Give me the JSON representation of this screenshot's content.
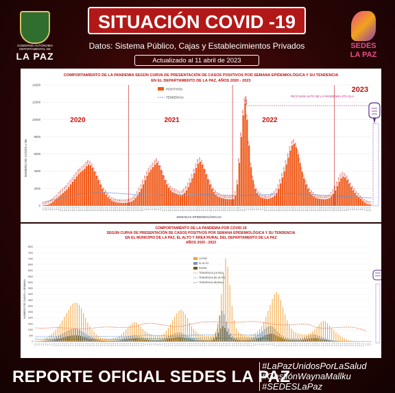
{
  "header": {
    "title": "SITUACIÓN COVID -19",
    "subtitle": "Datos: Sistema Público, Cajas y Establecimientos Privados",
    "updated": "Actualizado  al  11  abril  de  2023",
    "logo_left": {
      "line1": "GOBIERNO AUTÓNOMO",
      "line2": "DEPARTAMENTAL DE",
      "name": "LA PAZ"
    },
    "logo_right": {
      "line1": "SEDES",
      "line2": "LA PAZ"
    }
  },
  "chart_data": [
    {
      "type": "bar",
      "title": "COMPORTAMIENTO DE LA PANDEMIA SEGÚN CURVA DE PRESENTACIÓN DE CASOS POSITIVOS POR SEMANA EPIDEMIOLÓGICA Y SU TENDENCIA",
      "subtitle": "EN EL DEPARTAMENTO DE LA PAZ, AÑOS 2020 - 2023",
      "xlabel": "SEMANAS EPIDEMIOLÓGICAS",
      "ylabel": "NÚMERO DE CASOS x SE.",
      "ylim": [
        0,
        14000
      ],
      "yticks": [
        0,
        2000,
        4000,
        6000,
        8000,
        10000,
        12000,
        14000
      ],
      "legend": [
        "POSITIVOS",
        "TENDENCIA"
      ],
      "colors": {
        "bars": "#f05a1a",
        "trend": "#6a8fd0",
        "years": "#d01010"
      },
      "year_labels": [
        {
          "label": "2020",
          "at": 18
        },
        {
          "label": "2021",
          "at": 66
        },
        {
          "label": "2022",
          "at": 116
        },
        {
          "label": "2023",
          "at": 162
        }
      ],
      "year_dividers": [
        44,
        97,
        149
      ],
      "annotation": "PICO MÁS ALTO DE LA PANDEMIA 4TA OLA",
      "peak_label": "11877",
      "series": [
        {
          "name": "POSITIVOS",
          "values": [
            50,
            80,
            120,
            200,
            320,
            500,
            700,
            900,
            1100,
            1300,
            1500,
            1700,
            1900,
            2200,
            2500,
            2800,
            3100,
            3400,
            3700,
            3900,
            4100,
            4300,
            4600,
            4800,
            4700,
            4400,
            4000,
            3500,
            3000,
            2500,
            2000,
            1600,
            1300,
            1000,
            800,
            600,
            500,
            420,
            380,
            360,
            340,
            340,
            360,
            380,
            420,
            500,
            650,
            900,
            1200,
            1600,
            2000,
            2500,
            3000,
            3500,
            3900,
            4200,
            4500,
            4800,
            5000,
            4700,
            4200,
            3600,
            3000,
            2500,
            2100,
            1800,
            1600,
            1500,
            1400,
            1300,
            1200,
            1300,
            1500,
            1800,
            2200,
            2700,
            3200,
            3800,
            4400,
            4900,
            5100,
            4800,
            4300,
            3700,
            3100,
            2500,
            2000,
            1600,
            1300,
            1100,
            1000,
            900,
            850,
            800,
            780,
            760,
            760,
            780,
            1200,
            2500,
            5000,
            8000,
            10500,
            11877,
            10000,
            7000,
            4500,
            3000,
            2000,
            1500,
            1200,
            1000,
            900,
            850,
            800,
            820,
            900,
            1000,
            1200,
            1500,
            2000,
            2600,
            3300,
            4000,
            4800,
            5600,
            6400,
            7000,
            7200,
            6800,
            6000,
            5000,
            4000,
            3200,
            2500,
            2000,
            1600,
            1300,
            1100,
            950,
            850,
            800,
            780,
            760,
            760,
            800,
            900,
            1100,
            1400,
            1800,
            2300,
            2800,
            3200,
            3400,
            3300,
            3000,
            2600,
            2200,
            1800,
            1500,
            1200,
            1000,
            800,
            600,
            400,
            250,
            180,
            150
          ]
        },
        {
          "name": "TENDENCIA",
          "values": [
            400,
            600,
            800,
            1000,
            1200,
            1350,
            1450,
            1500,
            1550,
            1500,
            1450,
            1380,
            1320,
            1280,
            1250,
            1230,
            1230,
            1240,
            1260,
            1280,
            1300,
            1300,
            1290,
            1270,
            1250,
            1220,
            1200,
            1200,
            1220,
            1260,
            1300,
            1350,
            1400,
            1400,
            1380,
            1350,
            1300,
            1250,
            1200,
            1150,
            1100,
            1050,
            1000,
            950,
            900
          ]
        }
      ]
    },
    {
      "type": "bar",
      "title": "COMPORTAMIENTO DE LA PANDEMIA POR COVID-19",
      "subtitle": "SEGÚN CURVA DE PRESENTACIÓN DE CASOS POSITIVOS POR SEMANA EPIDEMIOLÓGICA Y SU TENDENCIA",
      "subtitle2": "EN EL  MUNICIPIO DE LA PAZ, EL ALTO Y ÁREA RURAL DEL DEPARTAMENTO DE LA PAZ",
      "subtitle3": "AÑOS 2020 - 2023",
      "ylabel": "NÚMERO DE CASOS x SEMANA",
      "ylim": [
        0,
        8000
      ],
      "yticks": [
        0,
        500,
        1000,
        1500,
        2000,
        2500,
        3000,
        3500,
        4000,
        4500,
        5000,
        5500,
        6000,
        6500,
        7000,
        7500,
        8000
      ],
      "legend": [
        "LA PAZ",
        "EL ALTO",
        "RURAL",
        "TENDENCIA (LA PAZ)",
        "TENDENCIA (EL ALTO)",
        "TENDENCIA (RURAL)"
      ],
      "colors": {
        "la_paz": "#f2a33a",
        "el_alto": "#7f95b0",
        "rural": "#6b5a1f",
        "t_lapaz": "#e06a3a",
        "t_elalto": "#5a8ad0",
        "t_rural": "#2a7a6a"
      },
      "series": [
        {
          "name": "LA PAZ",
          "values": [
            30,
            50,
            80,
            120,
            180,
            260,
            360,
            500,
            650,
            800,
            1000,
            1250,
            1500,
            1800,
            2100,
            2400,
            2700,
            3000,
            3200,
            3300,
            3250,
            3100,
            2800,
            2400,
            2000,
            1600,
            1300,
            1000,
            800,
            600,
            450,
            350,
            280,
            240,
            220,
            220,
            240,
            270,
            310,
            380,
            480,
            620,
            800,
            1000,
            1200,
            1400,
            1550,
            1650,
            1600,
            1450,
            1250,
            1050,
            900,
            780,
            680,
            600,
            550,
            520,
            500,
            520,
            580,
            700,
            900,
            1150,
            1450,
            1800,
            2100,
            2400,
            2600,
            2700,
            2550,
            2300,
            1950,
            1600,
            1300,
            1050,
            850,
            700,
            600,
            540,
            500,
            480,
            470,
            480,
            520,
            650,
            1100,
            2200,
            4000,
            5800,
            7000,
            6300,
            4800,
            3000,
            1800,
            1100,
            800,
            650,
            580,
            540,
            520,
            520,
            540,
            600,
            700,
            850,
            1050,
            1300,
            1650,
            2100,
            2600,
            3100,
            3600,
            4000,
            4200,
            4000,
            3500,
            2900,
            2300,
            1800,
            1400,
            1100,
            900,
            780,
            700,
            650,
            620,
            610,
            620,
            660,
            740,
            860,
            1000,
            1200,
            1450,
            1650,
            1750,
            1700,
            1550,
            1350,
            1150,
            950,
            780,
            620,
            480,
            360,
            260,
            180,
            120,
            80,
            60,
            50,
            45,
            40,
            40,
            40,
            40,
            40,
            40
          ]
        },
        {
          "name": "EL ALTO",
          "values": [
            10,
            20,
            30,
            45,
            70,
            100,
            140,
            190,
            250,
            320,
            400,
            500,
            600,
            700,
            800,
            900,
            980,
            1050,
            1100,
            1100,
            1050,
            980,
            880,
            760,
            640,
            520,
            420,
            340,
            270,
            210,
            160,
            130,
            110,
            100,
            95,
            95,
            100,
            110,
            130,
            160,
            200,
            260,
            330,
            400,
            460,
            510,
            540,
            550,
            520,
            470,
            410,
            350,
            300,
            260,
            230,
            210,
            200,
            195,
            200,
            220,
            260,
            320,
            400,
            490,
            580,
            660,
            720,
            760,
            770,
            720,
            640,
            550,
            460,
            380,
            320,
            270,
            230,
            200,
            185,
            175,
            170,
            170,
            180,
            220,
            380,
            800,
            1500,
            2200,
            2600,
            2300,
            1700,
            1100,
            700,
            450,
            330,
            270,
            240,
            225,
            220,
            220,
            230,
            260,
            310,
            380,
            470,
            580,
            720,
            880,
            1050,
            1200,
            1300,
            1330,
            1250,
            1080,
            880,
            700,
            550,
            430,
            350,
            300,
            270,
            255,
            250,
            250,
            255,
            270,
            310,
            370,
            440,
            520,
            580,
            610,
            590,
            530,
            460,
            390,
            320,
            260,
            200,
            150,
            110,
            80,
            55,
            40,
            30,
            25,
            22,
            20,
            20,
            20,
            20,
            20,
            20
          ]
        },
        {
          "name": "RURAL",
          "values": [
            5,
            10,
            15,
            22,
            35,
            50,
            70,
            95,
            125,
            160,
            200,
            250,
            300,
            350,
            400,
            450,
            490,
            520,
            540,
            540,
            520,
            480,
            430,
            370,
            310,
            250,
            200,
            160,
            130,
            100,
            80,
            65,
            55,
            50,
            48,
            48,
            50,
            55,
            65,
            80,
            100,
            130,
            165,
            200,
            230,
            255,
            270,
            275,
            260,
            235,
            205,
            175,
            150,
            130,
            115,
            105,
            100,
            98,
            100,
            110,
            130,
            160,
            200,
            245,
            290,
            330,
            360,
            380,
            385,
            360,
            320,
            275,
            230,
            190,
            160,
            135,
            115,
            100,
            92,
            88,
            85,
            85,
            90,
            110,
            190,
            400,
            750,
            1100,
            1300,
            1150,
            850,
            550,
            350,
            225,
            165,
            135,
            120,
            112,
            110,
            110,
            115,
            130,
            155,
            190,
            235,
            290,
            360,
            440,
            525,
            600,
            650,
            665,
            625,
            540,
            440,
            350,
            275,
            215,
            175,
            150,
            135,
            128,
            125,
            125,
            128,
            135,
            155,
            185,
            220,
            260,
            290,
            305,
            295,
            265,
            230,
            195,
            160,
            130,
            100,
            75,
            55,
            40,
            28,
            20,
            15,
            12,
            11,
            10,
            10,
            10,
            10,
            10,
            10
          ]
        }
      ]
    }
  ],
  "footer": {
    "report": "REPORTE OFICIAL SEDES LA PAZ",
    "tags": [
      "#LaPazUnidosPorLaSalud",
      "#GestiónWaynaMallku",
      "#SEDESLaPaz"
    ]
  }
}
